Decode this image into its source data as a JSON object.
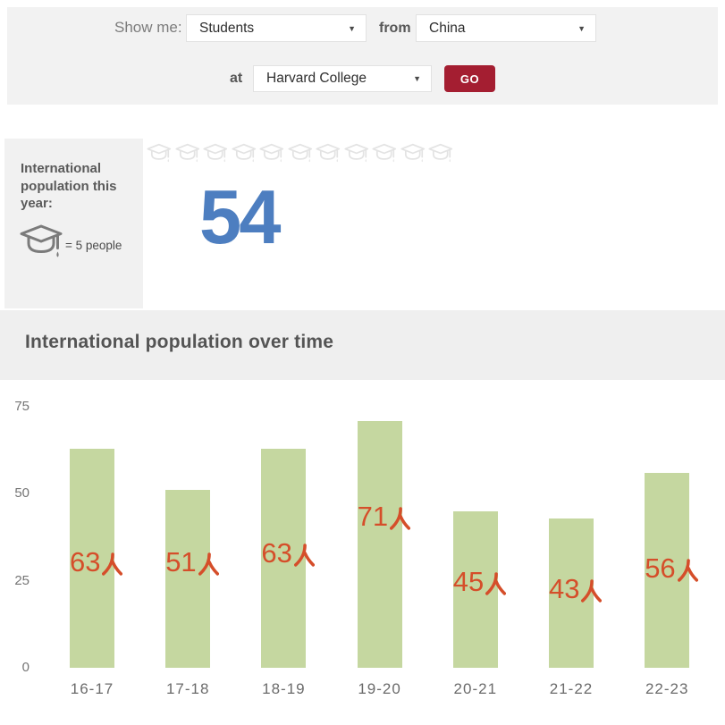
{
  "filter_bar": {
    "show_me_label": "Show me:",
    "subject_value": "Students",
    "from_label": "from",
    "origin_value": "China",
    "at_label": "at",
    "school_value": "Harvard College",
    "go_label": "GO"
  },
  "summary": {
    "panel_title": "International population this year:",
    "legend": "= 5 people",
    "big_number": "54",
    "icon_count": 11
  },
  "chart_section": {
    "title": "International population over time"
  },
  "chart_data": {
    "type": "bar",
    "title": "International population over time",
    "categories": [
      "16-17",
      "17-18",
      "18-19",
      "19-20",
      "20-21",
      "21-22",
      "22-23"
    ],
    "values": [
      63,
      51,
      63,
      71,
      45,
      43,
      56
    ],
    "annotations": [
      "63人",
      "51人",
      "63人",
      "71人",
      "45人",
      "43人",
      "56人"
    ],
    "xlabel": "",
    "ylabel": "",
    "yticks": [
      0,
      25,
      50,
      75
    ],
    "ylim": [
      0,
      75
    ],
    "grid": false,
    "legend_position": "none",
    "bar_color": "#c5d7a0",
    "annotation_color": "#d54e2a"
  },
  "colors": {
    "go_button": "#a41e31",
    "big_number_blue": "#4d7ec0",
    "bar_green": "#c5d7a0",
    "annotation_red": "#d54e2a",
    "pictogram_gray": "#e3e3e3",
    "topbar_bg": "#f2f2f2",
    "panel_bg": "#f1f1f1"
  }
}
